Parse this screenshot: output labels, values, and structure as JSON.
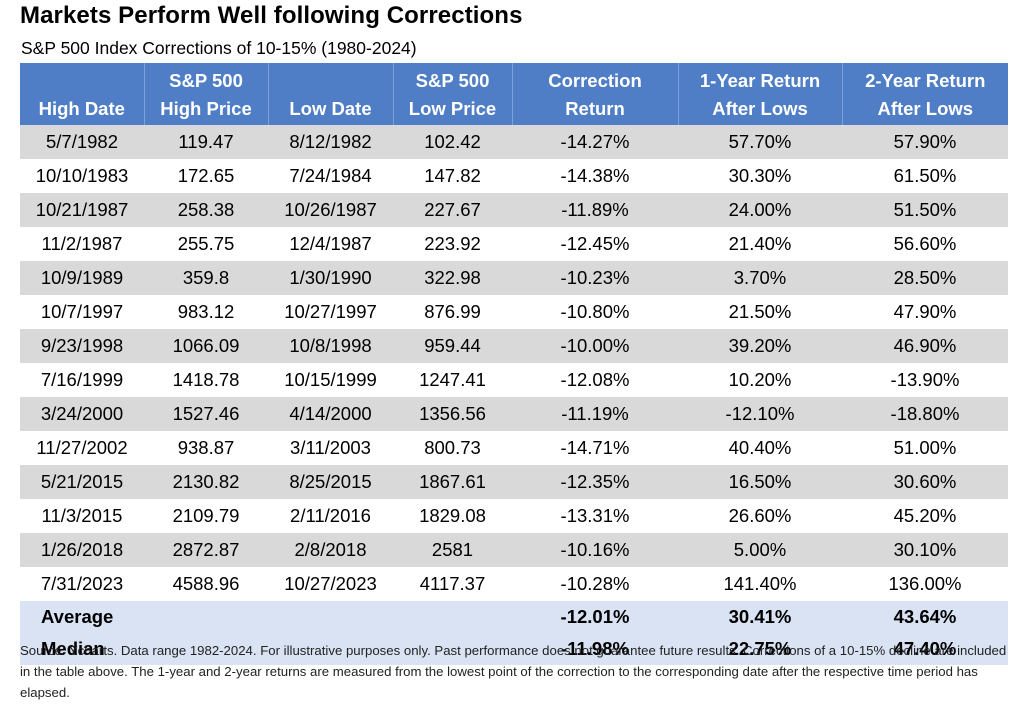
{
  "title": "Markets Perform Well following Corrections",
  "subtitle": "S&P 500 Index Corrections of 10-15% (1980-2024)",
  "colors": {
    "header_bg": "#4f7ec7",
    "stripe": "#d9d9d9",
    "summary_bg": "#dae3f3"
  },
  "table": {
    "headers": [
      {
        "line1": "",
        "line2": "High Date"
      },
      {
        "line1": "S&P 500",
        "line2": "High Price"
      },
      {
        "line1": "",
        "line2": "Low Date"
      },
      {
        "line1": "S&P 500",
        "line2": "Low Price"
      },
      {
        "line1": "Correction",
        "line2": "Return"
      },
      {
        "line1": "1-Year Return",
        "line2": "After Lows"
      },
      {
        "line1": "2-Year Return",
        "line2": "After Lows"
      }
    ],
    "summary": [
      {
        "label": "Average",
        "correction": "-12.01%",
        "one_year": "30.41%",
        "two_year": "43.64%"
      },
      {
        "label": "Median",
        "correction": "-11.98%",
        "one_year": "22.75%",
        "two_year": "47.40%"
      }
    ]
  },
  "chart_data": {
    "type": "table",
    "title": "Markets Perform Well following Corrections",
    "subtitle": "S&P 500 Index Corrections of 10-15% (1980-2024)",
    "columns": [
      "High Date",
      "S&P 500 High Price",
      "Low Date",
      "S&P 500 Low Price",
      "Correction Return",
      "1-Year Return After Lows",
      "2-Year Return After Lows"
    ],
    "rows": [
      [
        "5/7/1982",
        "119.47",
        "8/12/1982",
        "102.42",
        "-14.27%",
        "57.70%",
        "57.90%"
      ],
      [
        "10/10/1983",
        "172.65",
        "7/24/1984",
        "147.82",
        "-14.38%",
        "30.30%",
        "61.50%"
      ],
      [
        "10/21/1987",
        "258.38",
        "10/26/1987",
        "227.67",
        "-11.89%",
        "24.00%",
        "51.50%"
      ],
      [
        "11/2/1987",
        "255.75",
        "12/4/1987",
        "223.92",
        "-12.45%",
        "21.40%",
        "56.60%"
      ],
      [
        "10/9/1989",
        "359.8",
        "1/30/1990",
        "322.98",
        "-10.23%",
        "3.70%",
        "28.50%"
      ],
      [
        "10/7/1997",
        "983.12",
        "10/27/1997",
        "876.99",
        "-10.80%",
        "21.50%",
        "47.90%"
      ],
      [
        "9/23/1998",
        "1066.09",
        "10/8/1998",
        "959.44",
        "-10.00%",
        "39.20%",
        "46.90%"
      ],
      [
        "7/16/1999",
        "1418.78",
        "10/15/1999",
        "1247.41",
        "-12.08%",
        "10.20%",
        "-13.90%"
      ],
      [
        "3/24/2000",
        "1527.46",
        "4/14/2000",
        "1356.56",
        "-11.19%",
        "-12.10%",
        "-18.80%"
      ],
      [
        "11/27/2002",
        "938.87",
        "3/11/2003",
        "800.73",
        "-14.71%",
        "40.40%",
        "51.00%"
      ],
      [
        "5/21/2015",
        "2130.82",
        "8/25/2015",
        "1867.61",
        "-12.35%",
        "16.50%",
        "30.60%"
      ],
      [
        "11/3/2015",
        "2109.79",
        "2/11/2016",
        "1829.08",
        "-13.31%",
        "26.60%",
        "45.20%"
      ],
      [
        "1/26/2018",
        "2872.87",
        "2/8/2018",
        "2581",
        "-10.16%",
        "5.00%",
        "30.10%"
      ],
      [
        "7/31/2023",
        "4588.96",
        "10/27/2023",
        "4117.37",
        "-10.28%",
        "141.40%",
        "136.00%"
      ]
    ]
  },
  "footnote": "Source: Ycharts. Data range 1982-2024. For illustrative purposes only. Past performance does not guarantee future results. Corrections of a 10-15% decline are included in the table above. The 1-year and 2-year returns are measured from the lowest point of the correction to the corresponding date after the respective time period has elapsed."
}
